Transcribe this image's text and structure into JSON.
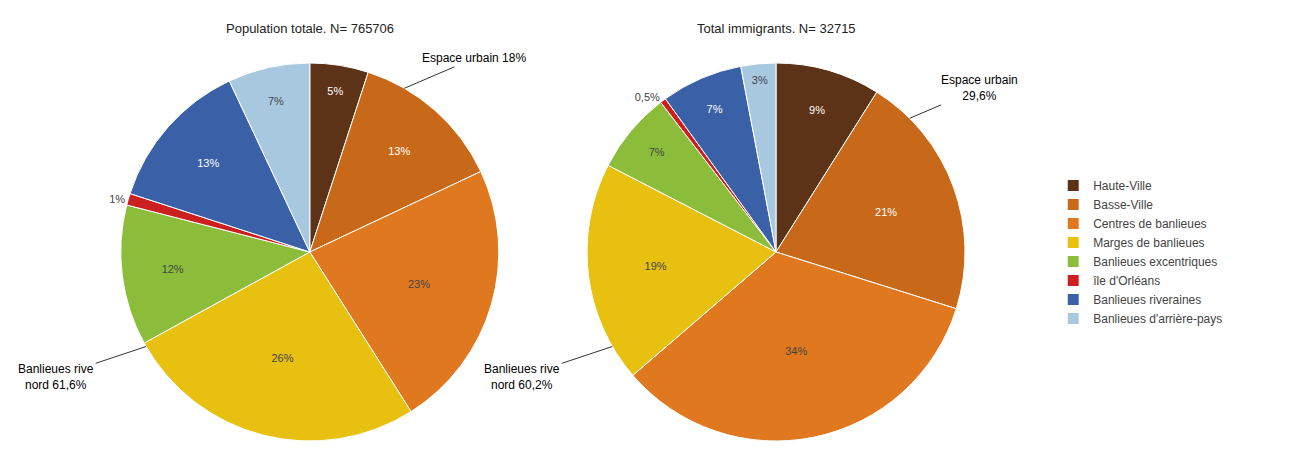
{
  "chart_data": [
    {
      "type": "pie",
      "title": "Population totale. N= 765706",
      "categories": [
        "Haute-Ville",
        "Basse-Ville",
        "Centres de banlieues",
        "Marges de banlieues",
        "Banlieues excentriques",
        "île d'Orléans",
        "Banlieues riveraines",
        "Banlieues d'arrière-pays"
      ],
      "values": [
        5,
        13,
        23,
        26,
        12,
        1,
        13,
        7
      ],
      "value_labels": [
        "5%",
        "13%",
        "23%",
        "26%",
        "12%",
        "1%",
        "13%",
        "7%"
      ],
      "colors": [
        "#5C3317",
        "#C8691A",
        "#E07820",
        "#E8C010",
        "#8BBD3A",
        "#CC2020",
        "#3A60A8",
        "#A8C8E0"
      ],
      "data_labels": true,
      "annotations": [
        "Espace urbain 18%",
        "Banlieues rive\nnord 61,6%"
      ],
      "legend": "right"
    },
    {
      "type": "pie",
      "title": "Total immigrants. N= 32715",
      "categories": [
        "Haute-Ville",
        "Basse-Ville",
        "Centres de banlieues",
        "Marges de banlieues",
        "Banlieues excentriques",
        "île d'Orléans",
        "Banlieues riveraines",
        "Banlieues d'arrière-pays"
      ],
      "values": [
        9,
        21,
        34,
        19,
        7,
        0.5,
        7,
        3
      ],
      "value_labels": [
        "9%",
        "21%",
        "34%",
        "19%",
        "7%",
        "0,5%",
        "7%",
        "3%"
      ],
      "colors": [
        "#5C3317",
        "#C8691A",
        "#E07820",
        "#E8C010",
        "#8BBD3A",
        "#CC2020",
        "#3A60A8",
        "#A8C8E0"
      ],
      "data_labels": true,
      "annotations": [
        "Espace urbain\n29,6%",
        "Banlieues rive\nnord 60,2%"
      ],
      "legend": "right"
    }
  ]
}
